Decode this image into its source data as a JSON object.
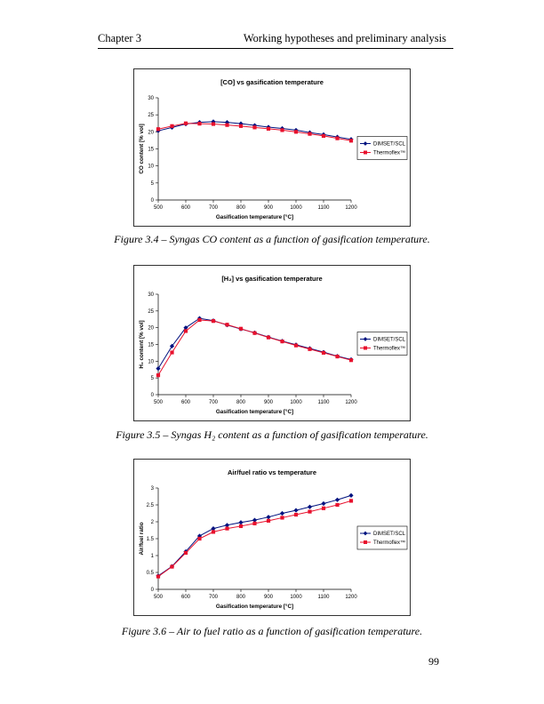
{
  "header": {
    "left": "Chapter 3",
    "right": "Working hypotheses and preliminary analysis"
  },
  "page_number": "99",
  "captions": [
    "Figure 3.4 – Syngas CO content as a function of gasification temperature.",
    "Figure 3.5 – Syngas H₂ content as a function of gasification temperature.",
    "Figure 3.6 – Air to fuel ratio as a function of gasification temperature."
  ],
  "colors": {
    "dimset": "#00127f",
    "thermoflex": "#e8112d"
  },
  "chart_data": [
    {
      "type": "line",
      "title": "[CO] vs gasification temperature",
      "xlabel": "Gasification temperature [°C]",
      "ylabel": "CO content [% vol]",
      "xlim": [
        500,
        1200
      ],
      "ylim": [
        0,
        30
      ],
      "xticks": [
        500,
        600,
        700,
        800,
        900,
        1000,
        1100,
        1200
      ],
      "yticks": [
        0,
        5,
        10,
        15,
        20,
        25,
        30
      ],
      "legend_position": "right",
      "x": [
        500,
        550,
        600,
        650,
        700,
        750,
        800,
        850,
        900,
        950,
        1000,
        1050,
        1100,
        1150,
        1200
      ],
      "series": [
        {
          "name": "DIMSET/SCL",
          "marker": "diamond",
          "values": [
            20.3,
            21.3,
            22.3,
            22.8,
            23.0,
            22.8,
            22.4,
            21.9,
            21.4,
            21.0,
            20.5,
            19.8,
            19.2,
            18.5,
            17.8
          ]
        },
        {
          "name": "Thermoflex™",
          "marker": "square",
          "values": [
            20.8,
            21.7,
            22.5,
            22.4,
            22.3,
            22.0,
            21.7,
            21.3,
            20.9,
            20.5,
            20.0,
            19.4,
            18.8,
            18.1,
            17.4
          ]
        }
      ]
    },
    {
      "type": "line",
      "title": "[H₂] vs gasification temperature",
      "xlabel": "Gasification temperature [°C]",
      "ylabel": "H₂ content [% vol]",
      "xlim": [
        500,
        1200
      ],
      "ylim": [
        0,
        30
      ],
      "xticks": [
        500,
        600,
        700,
        800,
        900,
        1000,
        1100,
        1200
      ],
      "yticks": [
        0,
        5,
        10,
        15,
        20,
        25,
        30
      ],
      "legend_position": "right",
      "x": [
        500,
        550,
        600,
        650,
        700,
        750,
        800,
        850,
        900,
        950,
        1000,
        1050,
        1100,
        1150,
        1200
      ],
      "series": [
        {
          "name": "DIMSET/SCL",
          "marker": "diamond",
          "values": [
            7.8,
            14.5,
            20.0,
            22.8,
            22.1,
            20.8,
            19.6,
            18.5,
            17.2,
            16.0,
            14.9,
            13.8,
            12.7,
            11.5,
            10.5
          ]
        },
        {
          "name": "Thermoflex™",
          "marker": "square",
          "values": [
            5.8,
            12.6,
            19.0,
            22.3,
            22.0,
            20.9,
            19.7,
            18.4,
            17.1,
            15.9,
            14.7,
            13.6,
            12.5,
            11.4,
            10.3
          ]
        }
      ]
    },
    {
      "type": "line",
      "title": "Air/fuel ratio vs temperature",
      "xlabel": "Gasification temperature [°C]",
      "ylabel": "Air/fuel ratio",
      "xlim": [
        500,
        1200
      ],
      "ylim": [
        0,
        3
      ],
      "xticks": [
        500,
        600,
        700,
        800,
        900,
        1000,
        1100,
        1200
      ],
      "yticks": [
        0,
        0.5,
        1,
        1.5,
        2,
        2.5,
        3
      ],
      "legend_position": "right",
      "x": [
        500,
        550,
        600,
        650,
        700,
        750,
        800,
        850,
        900,
        950,
        1000,
        1050,
        1100,
        1150,
        1200
      ],
      "series": [
        {
          "name": "DIMSET/SCL",
          "marker": "diamond",
          "values": [
            0.4,
            0.68,
            1.12,
            1.58,
            1.8,
            1.9,
            1.98,
            2.05,
            2.14,
            2.25,
            2.34,
            2.44,
            2.54,
            2.65,
            2.78
          ]
        },
        {
          "name": "Thermoflex™",
          "marker": "square",
          "values": [
            0.38,
            0.67,
            1.08,
            1.5,
            1.7,
            1.8,
            1.87,
            1.95,
            2.03,
            2.12,
            2.21,
            2.3,
            2.4,
            2.5,
            2.62
          ]
        }
      ]
    }
  ]
}
